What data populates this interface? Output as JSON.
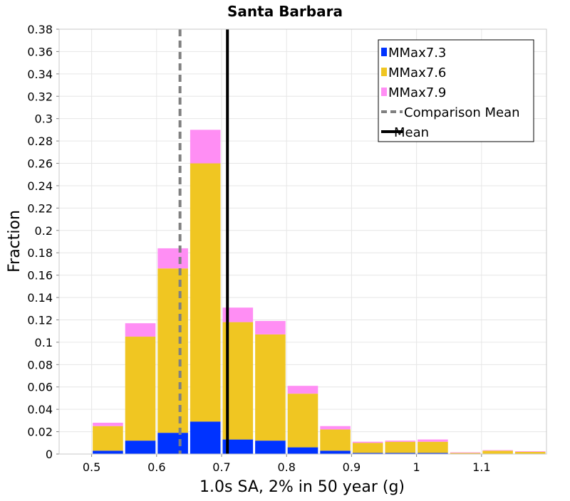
{
  "chart_data": {
    "type": "bar",
    "title": "Santa Barbara",
    "xlabel": "1.0s SA, 2% in 50 year (g)",
    "ylabel": "Fraction",
    "xlim": [
      0.45,
      1.2
    ],
    "ylim": [
      0,
      0.38
    ],
    "x_ticks": [
      0.5,
      0.6,
      0.7,
      0.8,
      0.9,
      1,
      1.1
    ],
    "y_ticks": [
      0,
      0.02,
      0.04,
      0.06,
      0.08,
      0.1,
      0.12,
      0.14,
      0.16,
      0.18,
      0.2,
      0.22,
      0.24,
      0.26,
      0.28,
      0.3,
      0.32,
      0.34,
      0.36,
      0.38
    ],
    "stacked": true,
    "bin_width": 0.05,
    "grid": true,
    "legend_position": "top-right",
    "x": [
      0.45,
      0.5,
      0.55,
      0.6,
      0.65,
      0.7,
      0.75,
      0.8,
      0.85,
      0.9,
      0.95,
      1.0,
      1.05,
      1.1,
      1.15
    ],
    "series": [
      {
        "name": "MMax7.3",
        "color": "#0033ff",
        "values": [
          0,
          0.003,
          0.012,
          0.019,
          0.029,
          0.013,
          0.012,
          0.006,
          0.003,
          0.001,
          0.001,
          0.001,
          0,
          0,
          0
        ]
      },
      {
        "name": "MMax7.6",
        "color": "#f0c622",
        "values": [
          0,
          0.022,
          0.093,
          0.147,
          0.231,
          0.105,
          0.095,
          0.048,
          0.019,
          0.009,
          0.01,
          0.01,
          0.001,
          0.003,
          0.002
        ]
      },
      {
        "name": "MMax7.9",
        "color": "#ff8ef4",
        "values": [
          0,
          0.003,
          0.012,
          0.018,
          0.03,
          0.013,
          0.012,
          0.007,
          0.003,
          0.001,
          0.001,
          0.002,
          0.0005,
          0.0005,
          0.0005
        ]
      }
    ],
    "lines": [
      {
        "name": "Comparison Mean",
        "x": 0.636,
        "color": "#808080",
        "style": "dashed"
      },
      {
        "name": "Mean",
        "x": 0.709,
        "color": "#000000",
        "style": "solid"
      }
    ]
  }
}
